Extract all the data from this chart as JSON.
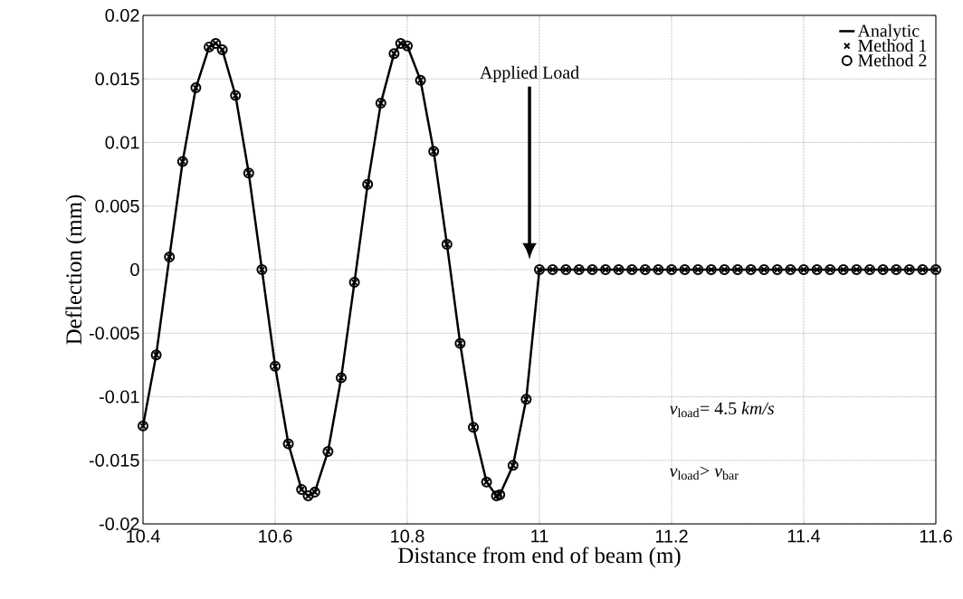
{
  "chart_data": {
    "type": "scatter",
    "xlabel": "Distance from end of beam (m)",
    "ylabel": "Deflection (mm)",
    "xlim": [
      10.4,
      11.6
    ],
    "ylim": [
      -0.02,
      0.02
    ],
    "xticks": [
      10.4,
      10.6,
      10.8,
      11,
      11.2,
      11.4,
      11.6
    ],
    "yticks": [
      -0.02,
      -0.015,
      -0.01,
      -0.005,
      0,
      0.005,
      0.01,
      0.015,
      0.02
    ],
    "grid": true,
    "legend": "top right",
    "x": [
      10.4,
      10.42,
      10.44,
      10.46,
      10.48,
      10.5,
      10.51,
      10.52,
      10.54,
      10.56,
      10.58,
      10.6,
      10.62,
      10.64,
      10.65,
      10.66,
      10.68,
      10.7,
      10.72,
      10.74,
      10.76,
      10.78,
      10.79,
      10.8,
      10.82,
      10.84,
      10.86,
      10.88,
      10.9,
      10.92,
      10.935,
      10.94,
      10.96,
      10.98,
      11,
      11.02,
      11.04,
      11.06,
      11.08,
      11.1,
      11.12,
      11.14,
      11.16,
      11.18,
      11.2,
      11.22,
      11.24,
      11.26,
      11.28,
      11.3,
      11.32,
      11.34,
      11.36,
      11.38,
      11.4,
      11.42,
      11.44,
      11.46,
      11.48,
      11.5,
      11.52,
      11.54,
      11.56,
      11.58,
      11.6
    ],
    "series": [
      {
        "name": "Analytic",
        "type": "line",
        "marker": "none",
        "line_style": "solid",
        "color": "#000000",
        "values": [
          -0.0123,
          -0.0067,
          0.001,
          0.0085,
          0.0143,
          0.0175,
          0.0178,
          0.0173,
          0.0137,
          0.0076,
          0,
          -0.0076,
          -0.0137,
          -0.0173,
          -0.0178,
          -0.0175,
          -0.0143,
          -0.0085,
          -0.001,
          0.0067,
          0.0131,
          0.017,
          0.0178,
          0.0176,
          0.0149,
          0.0093,
          0.002,
          -0.0058,
          -0.0124,
          -0.0167,
          -0.0178,
          -0.0177,
          -0.0154,
          -0.0102,
          0,
          0,
          0,
          0,
          0,
          0,
          0,
          0,
          0,
          0,
          0,
          0,
          0,
          0,
          0,
          0,
          0,
          0,
          0,
          0,
          0,
          0,
          0,
          0,
          0,
          0,
          0,
          0,
          0,
          0,
          0
        ]
      },
      {
        "name": "Method 1",
        "marker": "cross",
        "color": "#000000",
        "values": [
          -0.0123,
          -0.0067,
          0.001,
          0.0085,
          0.0143,
          0.0175,
          0.0178,
          0.0173,
          0.0137,
          0.0076,
          0,
          -0.0076,
          -0.0137,
          -0.0173,
          -0.0178,
          -0.0175,
          -0.0143,
          -0.0085,
          -0.001,
          0.0067,
          0.0131,
          0.017,
          0.0178,
          0.0176,
          0.0149,
          0.0093,
          0.002,
          -0.0058,
          -0.0124,
          -0.0167,
          -0.0178,
          -0.0177,
          -0.0154,
          -0.0102,
          0,
          0,
          0,
          0,
          0,
          0,
          0,
          0,
          0,
          0,
          0,
          0,
          0,
          0,
          0,
          0,
          0,
          0,
          0,
          0,
          0,
          0,
          0,
          0,
          0,
          0,
          0,
          0,
          0,
          0,
          0
        ]
      },
      {
        "name": "Method 2",
        "marker": "circle",
        "color": "#000000",
        "values": [
          -0.0123,
          -0.0067,
          0.001,
          0.0085,
          0.0143,
          0.0175,
          0.0178,
          0.0173,
          0.0137,
          0.0076,
          0,
          -0.0076,
          -0.0137,
          -0.0173,
          -0.0178,
          -0.0175,
          -0.0143,
          -0.0085,
          -0.001,
          0.0067,
          0.0131,
          0.017,
          0.0178,
          0.0176,
          0.0149,
          0.0093,
          0.002,
          -0.0058,
          -0.0124,
          -0.0167,
          -0.0178,
          -0.0177,
          -0.0154,
          -0.0102,
          0,
          0,
          0,
          0,
          0,
          0,
          0,
          0,
          0,
          0,
          0,
          0,
          0,
          0,
          0,
          0,
          0,
          0,
          0,
          0,
          0,
          0,
          0,
          0,
          0,
          0,
          0,
          0,
          0,
          0,
          0
        ]
      }
    ],
    "annotations": [
      "Applied Load",
      "*v*$_{load}$= 4.5 *km/s*",
      "*v*$_{load}$> *v*$_{bar}$"
    ]
  }
}
